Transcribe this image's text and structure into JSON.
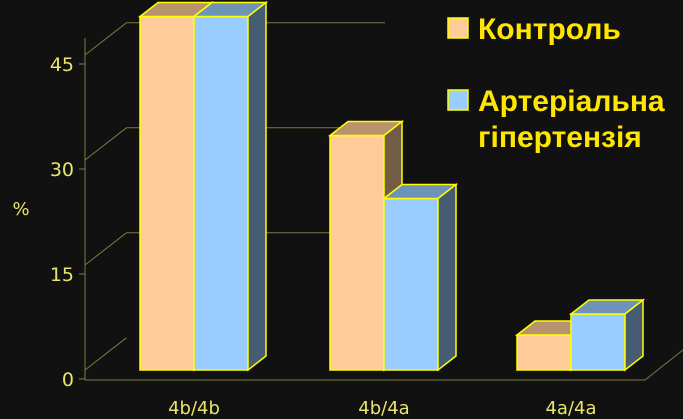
{
  "chart_data": {
    "type": "bar",
    "categories": [
      "4b/4b",
      "4b/4a",
      "4a/4a"
    ],
    "series": [
      {
        "name": "Контроль",
        "values": [
          50.5,
          33.5,
          5
        ],
        "color": "#FFCC99"
      },
      {
        "name": "Артеріальна гіпертензія",
        "values": [
          50.5,
          24.5,
          8
        ],
        "color": "#99CCFF"
      }
    ],
    "ylabel": "%",
    "yticks": [
      0,
      15,
      30,
      45
    ],
    "ylim": [
      0,
      50.5
    ],
    "grid": true,
    "legend_position": "top-right",
    "legend": {
      "items": [
        {
          "lines": [
            "Контроль"
          ]
        },
        {
          "lines": [
            "Артеріальна",
            "гіпертензія"
          ]
        }
      ]
    },
    "colors": {
      "background": "#111111",
      "axis_text": "#E8E56A",
      "legend_text": "#FFE600",
      "outline": "#FFFF00",
      "grid": "#7A7A40"
    }
  }
}
